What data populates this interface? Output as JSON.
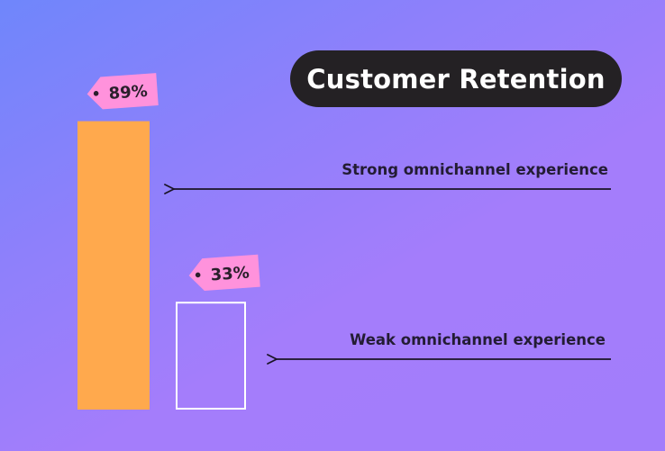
{
  "chart_data": {
    "type": "bar",
    "title": "Customer Retention",
    "categories": [
      "Strong omnichannel experience",
      "Weak omnichannel experience"
    ],
    "values": [
      89,
      33
    ],
    "value_labels": [
      "89%",
      "33%"
    ],
    "unit": "%",
    "ylim": [
      0,
      100
    ],
    "grid": false,
    "legend": "none",
    "colors": {
      "strong_bar_fill": "#ffa94d",
      "weak_bar_outline": "#ffffff",
      "tag_fill": "#ff92dc",
      "title_bg": "#242124",
      "title_text": "#ffffff",
      "label_text": "#231c33",
      "arrow": "#1a1426"
    }
  }
}
